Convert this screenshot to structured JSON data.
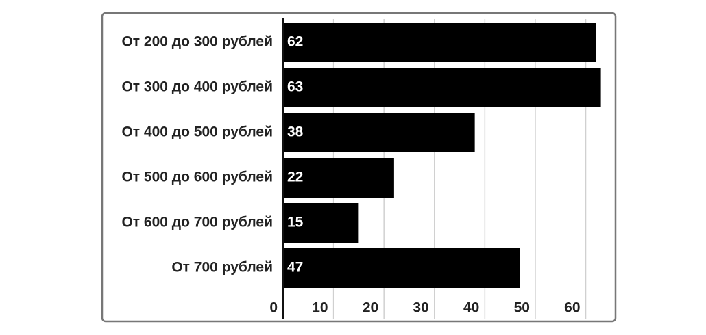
{
  "chart_data": {
    "type": "hbar",
    "categories": [
      "От 200 до 300 рублей",
      "От 300 до 400 рублей",
      "От 400 до 500 рублей",
      "От 500 до 600 рублей",
      "От 600 до 700 рублей",
      "От 700 рублей"
    ],
    "values": [
      62,
      63,
      38,
      22,
      15,
      47
    ],
    "color": "#000000",
    "xlim": [
      0,
      65.5
    ],
    "xticks": [
      0,
      10,
      20,
      30,
      40,
      50,
      60
    ],
    "grid": true
  }
}
